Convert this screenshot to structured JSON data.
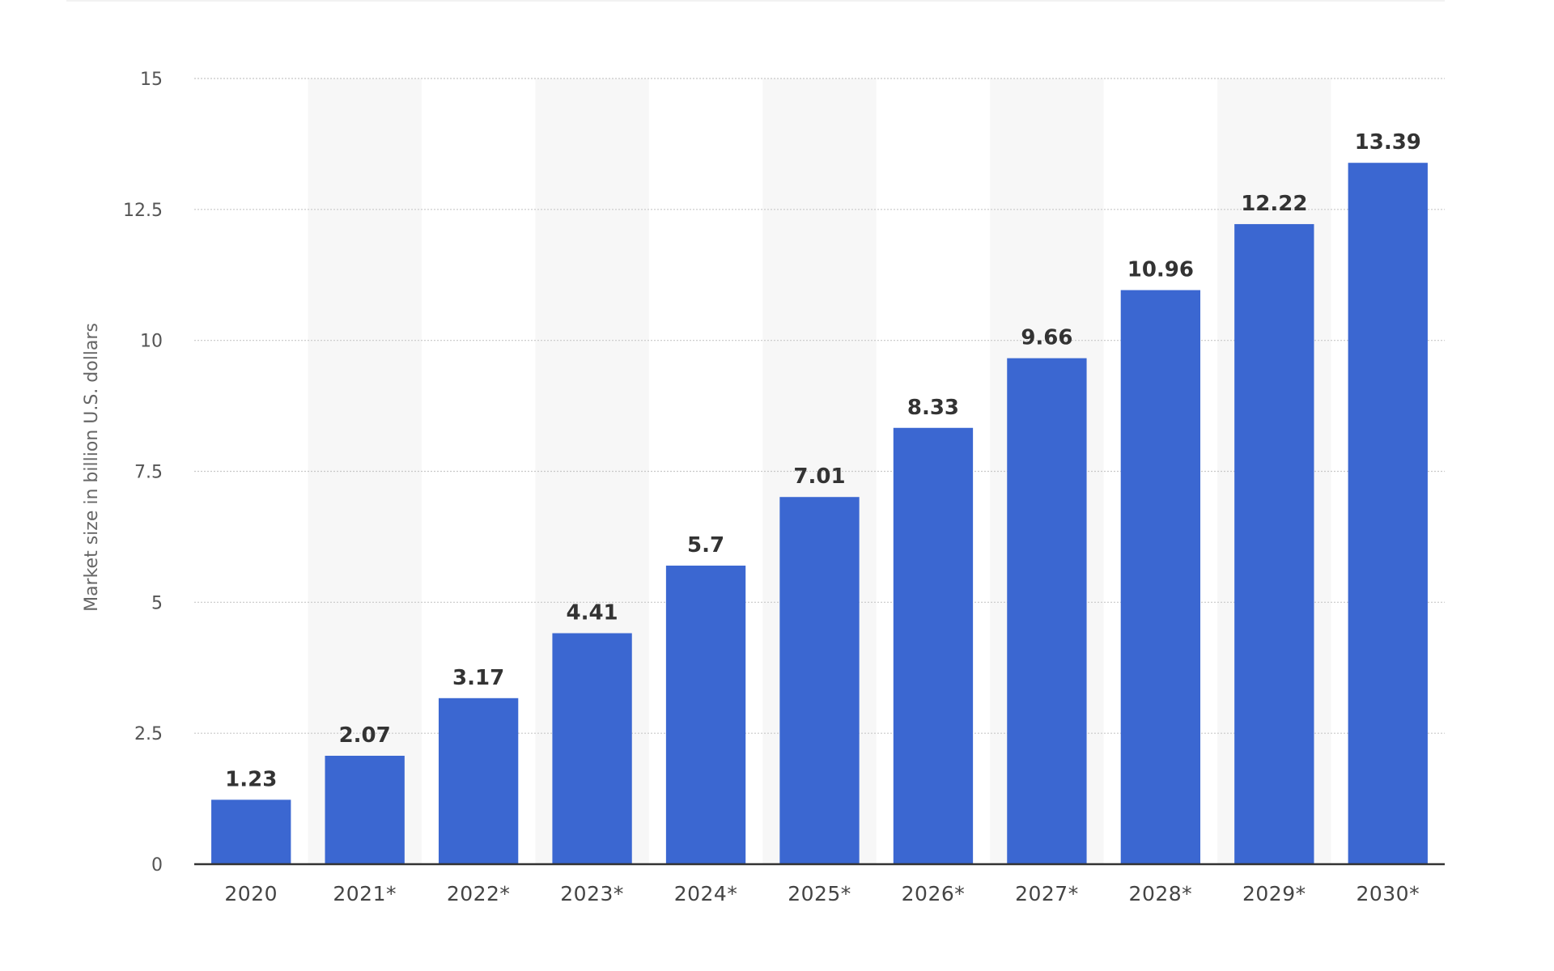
{
  "chart_data": {
    "type": "bar",
    "title": "",
    "xlabel": "",
    "ylabel": "Market size in billion U.S. dollars",
    "categories": [
      "2020",
      "2021*",
      "2022*",
      "2023*",
      "2024*",
      "2025*",
      "2026*",
      "2027*",
      "2028*",
      "2029*",
      "2030*"
    ],
    "values": [
      1.23,
      2.07,
      3.17,
      4.41,
      5.7,
      7.01,
      8.33,
      9.66,
      10.96,
      12.22,
      13.39
    ],
    "value_labels": [
      "1.23",
      "2.07",
      "3.17",
      "4.41",
      "5.7",
      "7.01",
      "8.33",
      "9.66",
      "10.96",
      "12.22",
      "13.39"
    ],
    "ylim": [
      0,
      15
    ],
    "yticks": [
      0,
      2.5,
      5,
      7.5,
      10,
      12.5,
      15
    ],
    "ytick_labels": [
      "0",
      "2.5",
      "5",
      "7.5",
      "10",
      "12.5",
      "15"
    ],
    "grid": true,
    "legend": "none",
    "colors": {
      "bar": "#3b67d1",
      "band": "#f7f7f7",
      "axis": "#333333",
      "grid": "#c8c8c8"
    }
  }
}
